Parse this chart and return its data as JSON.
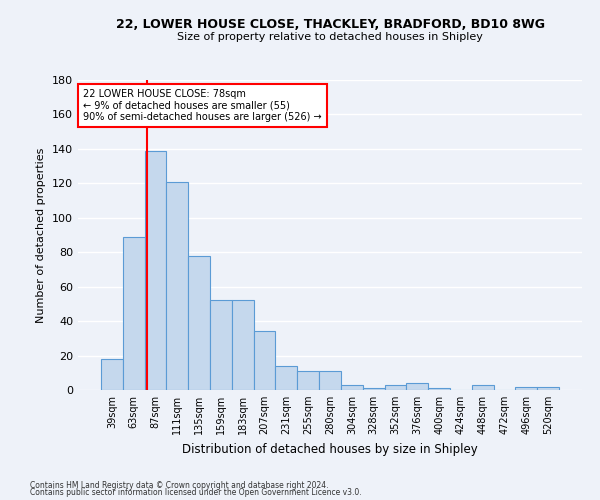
{
  "title1": "22, LOWER HOUSE CLOSE, THACKLEY, BRADFORD, BD10 8WG",
  "title2": "Size of property relative to detached houses in Shipley",
  "xlabel": "Distribution of detached houses by size in Shipley",
  "ylabel": "Number of detached properties",
  "bar_color": "#c5d8ed",
  "bar_edge_color": "#5b9bd5",
  "categories": [
    "39sqm",
    "63sqm",
    "87sqm",
    "111sqm",
    "135sqm",
    "159sqm",
    "183sqm",
    "207sqm",
    "231sqm",
    "255sqm",
    "280sqm",
    "304sqm",
    "328sqm",
    "352sqm",
    "376sqm",
    "400sqm",
    "424sqm",
    "448sqm",
    "472sqm",
    "496sqm",
    "520sqm"
  ],
  "values": [
    18,
    89,
    139,
    121,
    78,
    52,
    52,
    34,
    14,
    11,
    11,
    3,
    1,
    3,
    4,
    1,
    0,
    3,
    0,
    2,
    2
  ],
  "ylim": [
    0,
    180
  ],
  "yticks": [
    0,
    20,
    40,
    60,
    80,
    100,
    120,
    140,
    160,
    180
  ],
  "annotation_line1": "22 LOWER HOUSE CLOSE: 78sqm",
  "annotation_line2": "← 9% of detached houses are smaller (55)",
  "annotation_line3": "90% of semi-detached houses are larger (526) →",
  "annotation_box_color": "white",
  "annotation_box_edge": "red",
  "property_line_color": "red",
  "footer1": "Contains HM Land Registry data © Crown copyright and database right 2024.",
  "footer2": "Contains public sector information licensed under the Open Government Licence v3.0.",
  "background_color": "#eef2f9",
  "grid_color": "white"
}
